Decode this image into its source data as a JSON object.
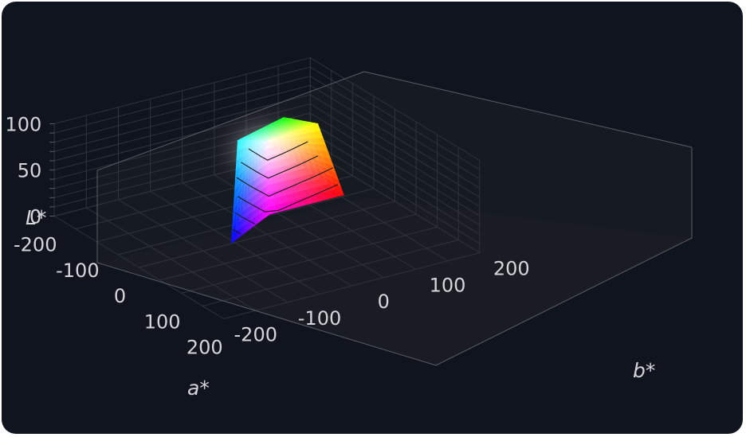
{
  "chart_data": {
    "type": "surface3d",
    "description_of_axes": "3D CIELAB gamut surface",
    "axes": {
      "x": {
        "label": "a*",
        "range": [
          -200,
          200
        ],
        "ticks": [
          "-200",
          "-100",
          "0",
          "100",
          "200"
        ]
      },
      "y": {
        "label": "b*",
        "range": [
          -200,
          200
        ],
        "ticks": [
          "-200",
          "-100",
          "0",
          "100",
          "200"
        ]
      },
      "z": {
        "label": "L*",
        "range": [
          0,
          100
        ],
        "ticks": [
          "0",
          "50",
          "100"
        ]
      }
    },
    "grid": true,
    "surface_vertices": [
      {
        "name": "white",
        "a": 0,
        "b": 0,
        "L": 100
      },
      {
        "name": "red",
        "a": 80,
        "b": 67,
        "L": 53
      },
      {
        "name": "yellow",
        "a": -22,
        "b": 94,
        "L": 97
      },
      {
        "name": "green",
        "a": -86,
        "b": 83,
        "L": 88
      },
      {
        "name": "cyan",
        "a": -48,
        "b": -14,
        "L": 91
      },
      {
        "name": "blue",
        "a": 79,
        "b": -108,
        "L": 32
      },
      {
        "name": "magenta",
        "a": 98,
        "b": -61,
        "L": 60
      }
    ],
    "contour_levels_L": [
      90,
      80,
      70,
      60,
      50,
      40
    ]
  },
  "colors": {
    "background": "#0f141e",
    "pane": "#191c22",
    "grid": "#3a3e47",
    "text": "#d4d6da"
  }
}
